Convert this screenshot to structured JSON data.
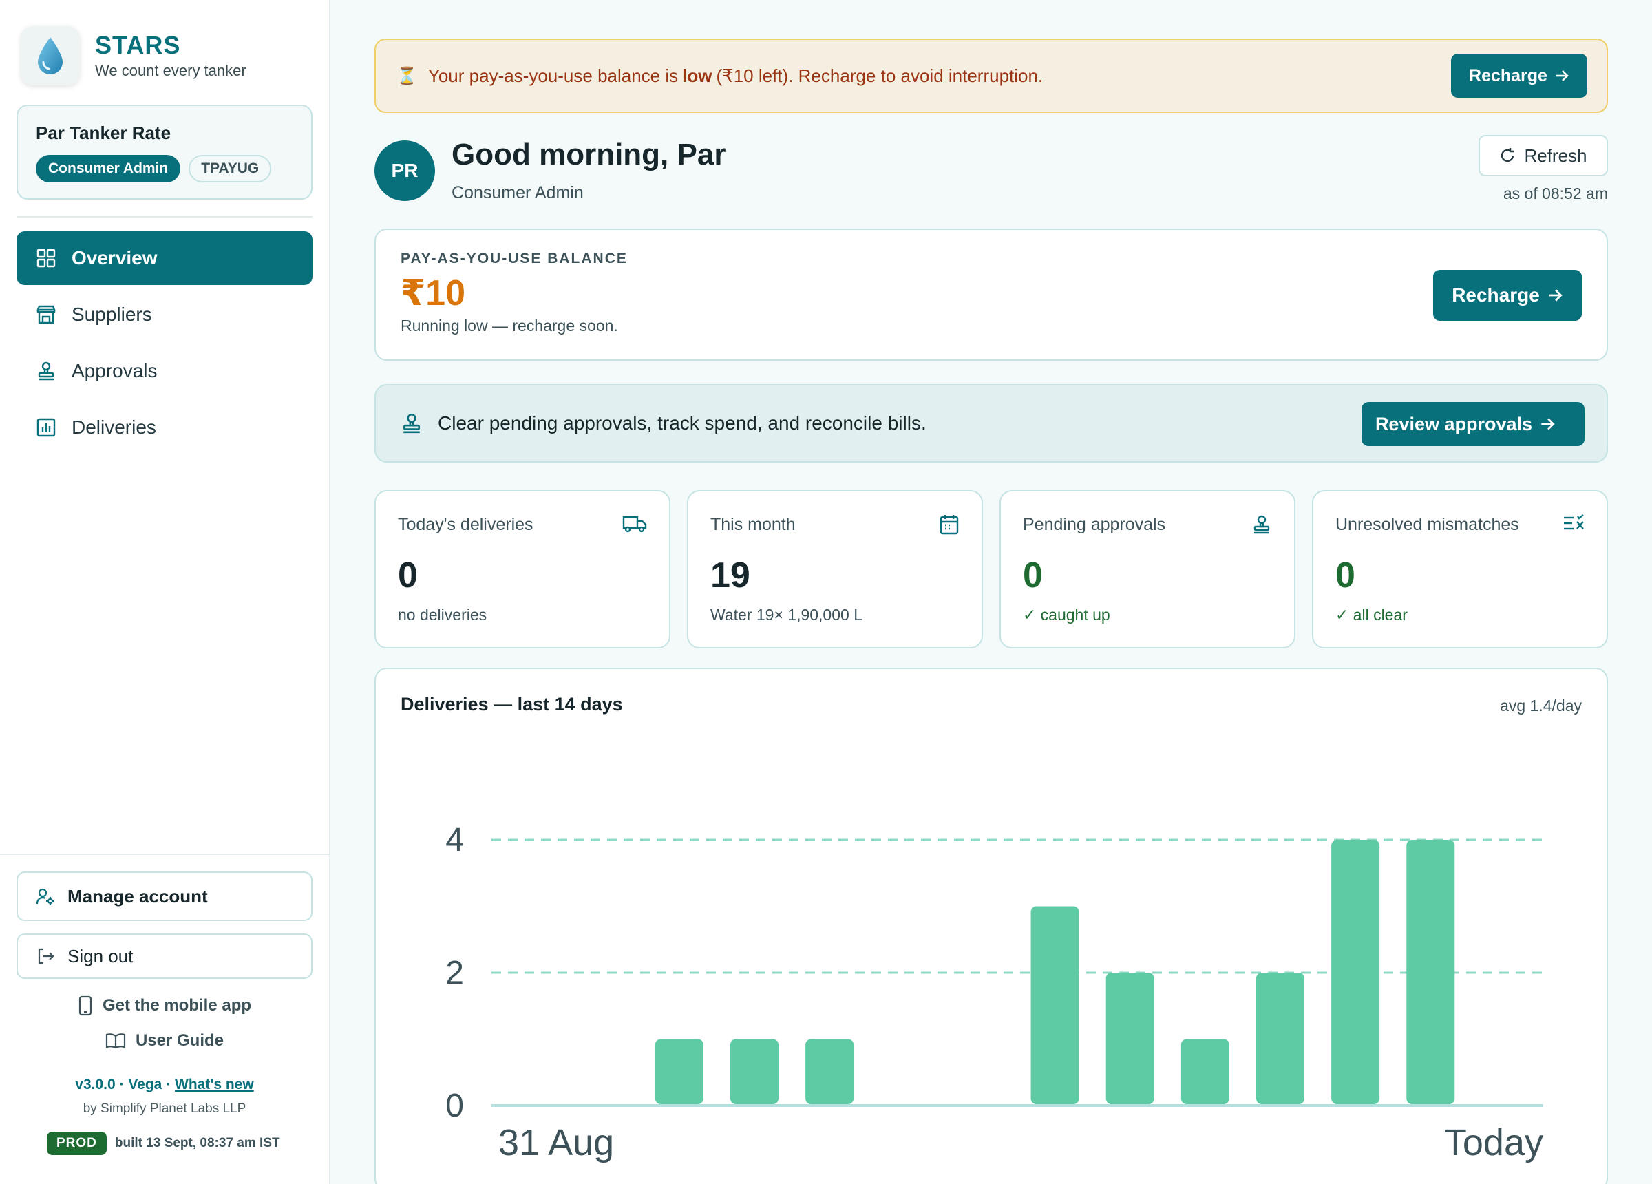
{
  "brand": {
    "name": "STARS",
    "tagline": "We count every tanker"
  },
  "org": {
    "name": "Par Tanker Rate",
    "role": "Consumer Admin",
    "code": "TPAYUG"
  },
  "nav": [
    {
      "label": "Overview",
      "icon": "grid-icon",
      "active": true
    },
    {
      "label": "Suppliers",
      "icon": "store-icon",
      "active": false
    },
    {
      "label": "Approvals",
      "icon": "stamp-icon",
      "active": false
    },
    {
      "label": "Deliveries",
      "icon": "bar-chart-icon",
      "active": false
    }
  ],
  "sidebar_footer": {
    "manage_account": "Manage account",
    "sign_out": "Sign out",
    "mobile_app": "Get the mobile app",
    "user_guide": "User Guide",
    "version": "v3.0.0 · Vega · ",
    "whats_new": "What's new",
    "byline": "by Simplify Planet Labs LLP",
    "env": "PROD",
    "build": "built 13 Sept, 08:37 am IST"
  },
  "alert": {
    "icon": "hourglass-icon",
    "text_before": "Your pay-as-you-use balance is",
    "text_bold": "low",
    "text_after": "(₹10 left). Recharge to avoid interruption.",
    "button": "Recharge"
  },
  "header": {
    "avatar": "PR",
    "greeting": "Good morning, Par",
    "role": "Consumer Admin",
    "refresh": "Refresh",
    "as_of": "as of 08:52 am"
  },
  "balance": {
    "label": "PAY-AS-YOU-USE BALANCE",
    "value": "₹10",
    "note": "Running low — recharge soon.",
    "button": "Recharge"
  },
  "cta": {
    "text": "Clear pending approvals, track spend, and reconcile bills.",
    "button": "Review approvals"
  },
  "stats": [
    {
      "title": "Today's deliveries",
      "value": "0",
      "note": "no deliveries",
      "icon": "truck-icon",
      "green": false
    },
    {
      "title": "This month",
      "value": "19",
      "note": "Water 19× 1,90,000 L",
      "icon": "calendar-icon",
      "green": false
    },
    {
      "title": "Pending approvals",
      "value": "0",
      "note": "✓ caught up",
      "icon": "stamp-icon",
      "green": true
    },
    {
      "title": "Unresolved mismatches",
      "value": "0",
      "note": "✓ all clear",
      "icon": "list-x-icon",
      "green": true
    }
  ],
  "chart": {
    "title": "Deliveries — last 14 days",
    "avg": "avg 1.4/day"
  },
  "colors": {
    "accent": "#08707b",
    "bar": "#5ecba4",
    "warning": "#d9750a",
    "success": "#1e6b32"
  },
  "chart_data": {
    "type": "bar",
    "title": "Deliveries — last 14 days",
    "categories": [
      "31 Aug",
      "",
      "",
      "",
      "",
      "",
      "",
      "",
      "",
      "",
      "",
      "",
      "",
      "Today"
    ],
    "values": [
      0,
      0,
      1,
      1,
      1,
      0,
      0,
      3,
      2,
      1,
      2,
      4,
      4,
      0
    ],
    "ylim": [
      0,
      4
    ],
    "yticks": [
      0,
      2,
      4
    ],
    "xtick_labels": [
      "31 Aug",
      "Today"
    ],
    "grid": true
  }
}
